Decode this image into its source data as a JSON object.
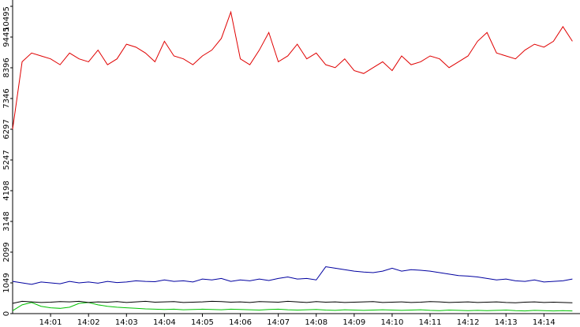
{
  "chart_data": {
    "type": "line",
    "x": [
      0,
      0.25,
      0.5,
      0.75,
      1,
      1.25,
      1.5,
      1.75,
      2,
      2.25,
      2.5,
      2.75,
      3,
      3.25,
      3.5,
      3.75,
      4,
      4.25,
      4.5,
      4.75,
      5,
      5.25,
      5.5,
      5.75,
      6,
      6.25,
      6.5,
      6.75,
      7,
      7.25,
      7.5,
      7.75,
      8,
      8.25,
      8.5,
      8.75,
      9,
      9.25,
      9.5,
      9.75,
      10,
      10.25,
      10.5,
      10.75,
      11,
      11.25,
      11.5,
      11.75,
      12,
      12.25,
      12.5,
      12.75,
      13,
      13.25,
      13.5,
      13.75,
      14,
      14.25,
      14.5,
      14.75
    ],
    "series": [
      {
        "color": "#e00000",
        "values": [
          6300,
          8600,
          8900,
          8800,
          8700,
          8500,
          8900,
          8700,
          8600,
          9000,
          8500,
          8700,
          9200,
          9100,
          8900,
          8600,
          9300,
          8800,
          8700,
          8500,
          8800,
          9000,
          9400,
          10300,
          8700,
          8500,
          9000,
          9600,
          8600,
          8800,
          9200,
          8700,
          8900,
          8500,
          8400,
          8700,
          8300,
          8200,
          8400,
          8600,
          8300,
          8800,
          8500,
          8600,
          8800,
          8700,
          8400,
          8600,
          8800,
          9300,
          9600,
          8900,
          8800,
          8700,
          9000,
          9200,
          9100,
          9300,
          9800,
          9300
        ]
      },
      {
        "color": "#0000a0",
        "values": [
          1100,
          1050,
          1000,
          1080,
          1050,
          1020,
          1100,
          1050,
          1080,
          1040,
          1100,
          1060,
          1080,
          1120,
          1100,
          1090,
          1150,
          1100,
          1120,
          1080,
          1180,
          1150,
          1200,
          1100,
          1150,
          1120,
          1180,
          1130,
          1200,
          1250,
          1180,
          1200,
          1150,
          1600,
          1550,
          1500,
          1450,
          1420,
          1400,
          1450,
          1550,
          1450,
          1500,
          1480,
          1450,
          1400,
          1350,
          1300,
          1280,
          1250,
          1200,
          1150,
          1180,
          1120,
          1100,
          1150,
          1080,
          1100,
          1120,
          1180
        ]
      },
      {
        "color": "#000000",
        "values": [
          350,
          420,
          400,
          380,
          390,
          410,
          400,
          420,
          380,
          400,
          390,
          410,
          380,
          400,
          420,
          390,
          400,
          410,
          380,
          390,
          400,
          420,
          410,
          390,
          400,
          380,
          410,
          400,
          390,
          420,
          400,
          380,
          410,
          390,
          400,
          380,
          390,
          400,
          410,
          380,
          390,
          400,
          380,
          390,
          410,
          400,
          380,
          390,
          400,
          380,
          390,
          400,
          380,
          370,
          390,
          400,
          380,
          390,
          380,
          370
        ]
      },
      {
        "color": "#00c000",
        "values": [
          100,
          300,
          380,
          250,
          200,
          180,
          220,
          350,
          380,
          300,
          250,
          220,
          200,
          180,
          160,
          150,
          140,
          150,
          130,
          140,
          150,
          140,
          130,
          150,
          140,
          130,
          120,
          140,
          150,
          130,
          120,
          130,
          140,
          120,
          110,
          130,
          120,
          110,
          120,
          130,
          120,
          110,
          120,
          130,
          110,
          100,
          120,
          110,
          100,
          110,
          100,
          110,
          120,
          100,
          90,
          110,
          100,
          90,
          100,
          90
        ]
      }
    ],
    "xlim": [
      0,
      14.95
    ],
    "xticks": [
      {
        "value": 1,
        "label": "14:01"
      },
      {
        "value": 2,
        "label": "14:02"
      },
      {
        "value": 3,
        "label": "14:03"
      },
      {
        "value": 4,
        "label": "14:04"
      },
      {
        "value": 5,
        "label": "14:05"
      },
      {
        "value": 6,
        "label": "14:06"
      },
      {
        "value": 7,
        "label": "14:07"
      },
      {
        "value": 8,
        "label": "14:08"
      },
      {
        "value": 9,
        "label": "14:09"
      },
      {
        "value": 10,
        "label": "14:10"
      },
      {
        "value": 11,
        "label": "14:11"
      },
      {
        "value": 12,
        "label": "14:12"
      },
      {
        "value": 13,
        "label": "14:13"
      },
      {
        "value": 14,
        "label": "14:14"
      }
    ],
    "ylim": [
      0,
      10495
    ],
    "yticks": [
      0,
      1049,
      2099,
      3148,
      4198,
      5247,
      6297,
      7346,
      8396,
      9445,
      10495
    ]
  }
}
